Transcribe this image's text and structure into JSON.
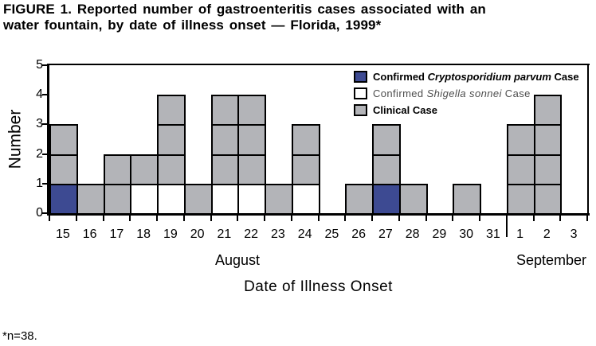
{
  "title": {
    "line1": "FIGURE 1. Reported number of gastroenteritis cases associated with an",
    "line2": "water fountain, by date of illness onset — Florida, 1999*"
  },
  "footnote": "*n=38.",
  "colors": {
    "case_crypto": "#3D4A92",
    "case_shigella": "#FFFFFF",
    "case_clinical": "#B3B4B8",
    "outline": "#000000",
    "legend_secondary_text": "#4D4D4D"
  },
  "legend": [
    {
      "type": "crypto",
      "prefix": "Confirmed ",
      "italic": "Cryptosporidium parvum",
      "suffix": " Case",
      "bold": true
    },
    {
      "type": "shigella",
      "prefix": "Confirmed ",
      "italic": "Shigella sonnei",
      "suffix": " Case",
      "bold": false
    },
    {
      "type": "clinical",
      "prefix": "Clinical Case",
      "italic": "",
      "suffix": "",
      "bold": true
    }
  ],
  "chart_data": {
    "type": "bar",
    "subtype": "stacked-unit-epi-curve",
    "title": "Reported number of gastroenteritis cases associated with an water fountain, by date of illness onset — Florida, 1999",
    "xlabel": "Date of Illness Onset",
    "ylabel": "Number",
    "ylim": [
      0,
      5
    ],
    "yticks": [
      0,
      1,
      2,
      3,
      4,
      5
    ],
    "grid": false,
    "legend_position": "top-right-inside",
    "n_total": 38,
    "months": [
      {
        "label": "August",
        "days": 17
      },
      {
        "label": "September",
        "days": 3
      }
    ],
    "columns": [
      {
        "day": "15",
        "month": "August",
        "cells": [
          "crypto",
          "clinical",
          "clinical"
        ]
      },
      {
        "day": "16",
        "month": "August",
        "cells": [
          "clinical"
        ]
      },
      {
        "day": "17",
        "month": "August",
        "cells": [
          "clinical",
          "clinical"
        ]
      },
      {
        "day": "18",
        "month": "August",
        "cells": [
          "shigella",
          "clinical"
        ]
      },
      {
        "day": "19",
        "month": "August",
        "cells": [
          "shigella",
          "clinical",
          "clinical",
          "clinical"
        ]
      },
      {
        "day": "20",
        "month": "August",
        "cells": [
          "clinical"
        ]
      },
      {
        "day": "21",
        "month": "August",
        "cells": [
          "shigella",
          "clinical",
          "clinical",
          "clinical"
        ]
      },
      {
        "day": "22",
        "month": "August",
        "cells": [
          "shigella",
          "clinical",
          "clinical",
          "clinical"
        ]
      },
      {
        "day": "23",
        "month": "August",
        "cells": [
          "clinical"
        ]
      },
      {
        "day": "24",
        "month": "August",
        "cells": [
          "shigella",
          "clinical",
          "clinical"
        ]
      },
      {
        "day": "25",
        "month": "August",
        "cells": []
      },
      {
        "day": "26",
        "month": "August",
        "cells": [
          "clinical"
        ]
      },
      {
        "day": "27",
        "month": "August",
        "cells": [
          "crypto",
          "clinical",
          "clinical"
        ]
      },
      {
        "day": "28",
        "month": "August",
        "cells": [
          "clinical"
        ]
      },
      {
        "day": "29",
        "month": "August",
        "cells": []
      },
      {
        "day": "30",
        "month": "August",
        "cells": [
          "clinical"
        ]
      },
      {
        "day": "31",
        "month": "August",
        "cells": []
      },
      {
        "day": "1",
        "month": "September",
        "cells": [
          "clinical",
          "clinical",
          "clinical"
        ]
      },
      {
        "day": "2",
        "month": "September",
        "cells": [
          "clinical",
          "clinical",
          "clinical",
          "clinical"
        ]
      },
      {
        "day": "3",
        "month": "September",
        "cells": []
      }
    ],
    "series": [
      {
        "name": "Confirmed Cryptosporidium parvum Case",
        "values": [
          1,
          0,
          0,
          0,
          0,
          0,
          0,
          0,
          0,
          0,
          0,
          0,
          1,
          0,
          0,
          0,
          0,
          0,
          0,
          0
        ]
      },
      {
        "name": "Confirmed Shigella sonnei Case",
        "values": [
          0,
          0,
          0,
          1,
          1,
          0,
          1,
          1,
          0,
          1,
          0,
          0,
          0,
          0,
          0,
          0,
          0,
          0,
          0,
          0
        ]
      },
      {
        "name": "Clinical Case",
        "values": [
          2,
          1,
          2,
          1,
          3,
          1,
          3,
          3,
          1,
          2,
          0,
          1,
          2,
          1,
          0,
          1,
          0,
          3,
          4,
          0
        ]
      }
    ]
  }
}
